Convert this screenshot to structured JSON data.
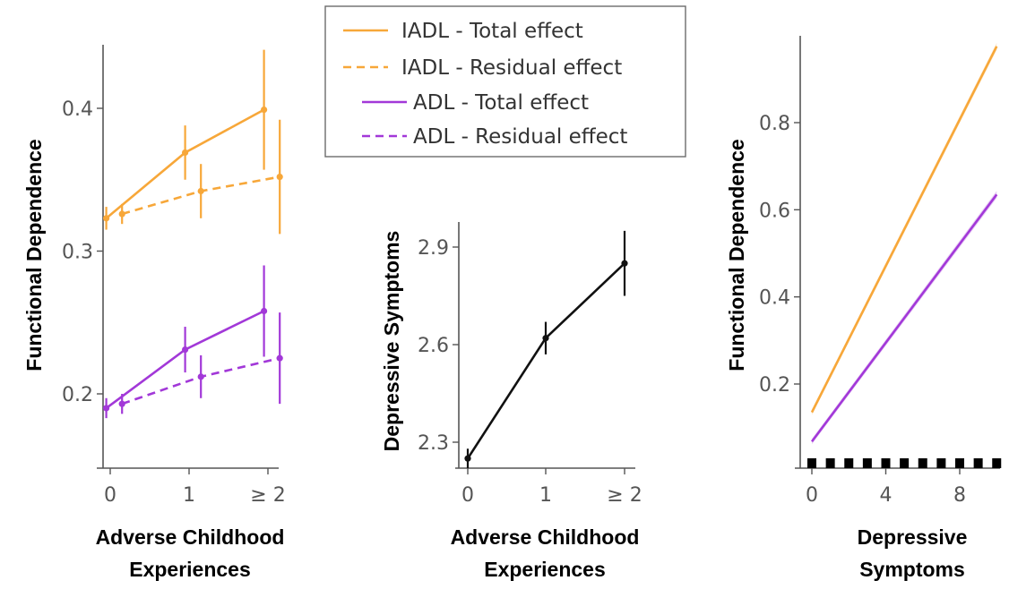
{
  "colors": {
    "iadl": "#F7A739",
    "adl": "#A238D8",
    "depressive": "#111111",
    "axis": "#555555"
  },
  "legend": {
    "placement": "top-center",
    "entries": [
      {
        "label": "IADL - Total effect",
        "color": "#F7A739",
        "dash": "solid"
      },
      {
        "label": "IADL - Residual effect",
        "color": "#F7A739",
        "dash": "dashed"
      },
      {
        "label": "ADL - Total effect",
        "color": "#A238D8",
        "dash": "solid"
      },
      {
        "label": "ADL - Residual effect",
        "color": "#A238D8",
        "dash": "dashed"
      }
    ]
  },
  "chart_data": [
    {
      "type": "line",
      "xlabel": "Adverse Childhood Experiences",
      "ylabel": "Functional Dependence",
      "categories": [
        "0",
        "1",
        "≥ 2"
      ],
      "yticks": [
        "0.2",
        "0.3",
        "0.4"
      ],
      "ylim": [
        0.15,
        0.45
      ],
      "series": [
        {
          "name": "IADL - Total effect",
          "color": "#F7A739",
          "dash": "solid",
          "offset": -0.05,
          "values": [
            0.323,
            0.369,
            0.399
          ],
          "lower": [
            0.315,
            0.35,
            0.357
          ],
          "upper": [
            0.331,
            0.388,
            0.441
          ]
        },
        {
          "name": "IADL - Residual effect",
          "color": "#F7A739",
          "dash": "dashed",
          "offset": 0.15,
          "values": [
            0.326,
            0.342,
            0.352
          ],
          "lower": [
            0.319,
            0.323,
            0.312
          ],
          "upper": [
            0.333,
            0.361,
            0.392
          ]
        },
        {
          "name": "ADL - Total effect",
          "color": "#A238D8",
          "dash": "solid",
          "offset": -0.05,
          "values": [
            0.19,
            0.231,
            0.258
          ],
          "lower": [
            0.183,
            0.215,
            0.226
          ],
          "upper": [
            0.197,
            0.247,
            0.29
          ]
        },
        {
          "name": "ADL - Residual effect",
          "color": "#A238D8",
          "dash": "dashed",
          "offset": 0.15,
          "values": [
            0.193,
            0.212,
            0.225
          ],
          "lower": [
            0.186,
            0.197,
            0.193
          ],
          "upper": [
            0.2,
            0.227,
            0.257
          ]
        }
      ]
    },
    {
      "type": "line",
      "xlabel": "Adverse Childhood Experiences",
      "ylabel": "Depressive Symptoms",
      "categories": [
        "0",
        "1",
        "≥ 2"
      ],
      "yticks": [
        "2.3",
        "2.6",
        "2.9"
      ],
      "ylim": [
        2.2,
        3.0
      ],
      "series": [
        {
          "color": "#111111",
          "values": [
            2.25,
            2.62,
            2.85
          ],
          "lower": [
            2.22,
            2.57,
            2.75
          ],
          "upper": [
            2.28,
            2.67,
            2.95
          ]
        }
      ]
    },
    {
      "type": "line",
      "xlabel": "Depressive Symptoms",
      "ylabel": "Functional Dependence",
      "xticks": [
        "0",
        "4",
        "8"
      ],
      "yticks": [
        "0.2",
        "0.4",
        "0.6",
        "0.8"
      ],
      "xlim": [
        -0.3,
        10.3
      ],
      "ylim": [
        0.0,
        0.99
      ],
      "series": [
        {
          "color": "#F7A739",
          "x": [
            0,
            10
          ],
          "y": [
            0.135,
            0.975
          ]
        },
        {
          "color": "#A238D8",
          "x": [
            0,
            10
          ],
          "y": [
            0.068,
            0.635
          ]
        }
      ],
      "rug": [
        0,
        1,
        2,
        3,
        4,
        5,
        6,
        7,
        8,
        9,
        10
      ]
    }
  ]
}
